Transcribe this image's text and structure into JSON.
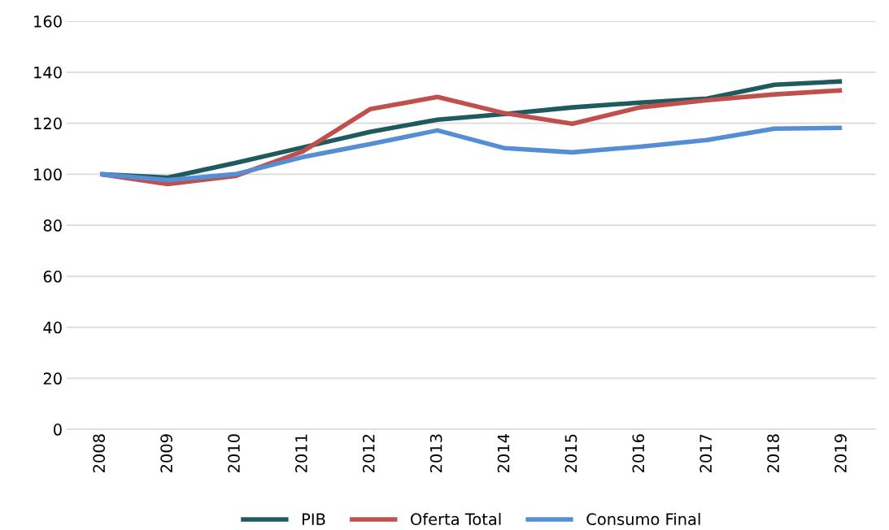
{
  "chart_data": {
    "type": "line",
    "categories": [
      "2008",
      "2009",
      "2010",
      "2011",
      "2012",
      "2013",
      "2014",
      "2015",
      "2016",
      "2017",
      "2018",
      "2019"
    ],
    "series": [
      {
        "name": "PIB",
        "color": "#1f5b5e",
        "values": [
          100,
          98.7,
          104.4,
          110.5,
          116.6,
          121.4,
          123.6,
          126.2,
          128.1,
          129.7,
          135.1,
          136.4
        ]
      },
      {
        "name": "Oferta Total",
        "color": "#c0504d",
        "values": [
          100,
          96.1,
          99.3,
          108.9,
          125.5,
          130.3,
          123.9,
          119.8,
          126.2,
          129,
          131.3,
          132.9
        ]
      },
      {
        "name": "Consumo Final",
        "color": "#558ed5",
        "values": [
          100,
          97.7,
          100,
          106.7,
          111.8,
          117.2,
          110.2,
          108.6,
          110.8,
          113.4,
          117.9,
          118.2
        ]
      }
    ],
    "ylim": [
      0,
      160
    ],
    "yticks": [
      0,
      20,
      40,
      60,
      80,
      100,
      120,
      140,
      160
    ],
    "grid": "y",
    "legend": "bottom",
    "marker": "none",
    "line_style": "solid"
  }
}
